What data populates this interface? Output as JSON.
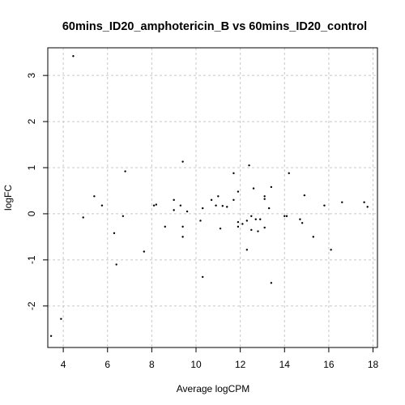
{
  "chart_data": {
    "type": "scatter",
    "title": "60mins_ID20_amphotericin_B vs 60mins_ID20_control",
    "xlabel": "Average logCPM",
    "ylabel": "logFC",
    "xlim": [
      3.3,
      18.2
    ],
    "ylim": [
      -2.9,
      3.6
    ],
    "xticks": [
      4,
      6,
      8,
      10,
      12,
      14,
      16,
      18
    ],
    "yticks": [
      -2,
      -1,
      0,
      1,
      2,
      3
    ],
    "xtick_labels": [
      "4",
      "6",
      "8",
      "10",
      "12",
      "14",
      "16",
      "18"
    ],
    "ytick_labels": [
      "-2",
      "-1",
      "0",
      "1",
      "2",
      "3"
    ],
    "grid": true,
    "points": [
      {
        "x": 3.45,
        "y": -2.65
      },
      {
        "x": 3.9,
        "y": -2.28
      },
      {
        "x": 4.45,
        "y": 3.42
      },
      {
        "x": 4.9,
        "y": -0.08
      },
      {
        "x": 5.4,
        "y": 0.38
      },
      {
        "x": 5.75,
        "y": 0.18
      },
      {
        "x": 6.3,
        "y": -0.42
      },
      {
        "x": 6.4,
        "y": -1.1
      },
      {
        "x": 6.7,
        "y": -0.05
      },
      {
        "x": 6.8,
        "y": 0.92
      },
      {
        "x": 7.65,
        "y": -0.82
      },
      {
        "x": 8.1,
        "y": 0.18
      },
      {
        "x": 8.2,
        "y": 0.2
      },
      {
        "x": 8.6,
        "y": -0.28
      },
      {
        "x": 9.0,
        "y": 0.3
      },
      {
        "x": 9.0,
        "y": 0.08
      },
      {
        "x": 9.3,
        "y": 0.18
      },
      {
        "x": 9.4,
        "y": 1.13
      },
      {
        "x": 9.4,
        "y": -0.28
      },
      {
        "x": 9.4,
        "y": -0.5
      },
      {
        "x": 9.6,
        "y": 0.05
      },
      {
        "x": 10.2,
        "y": -0.15
      },
      {
        "x": 10.3,
        "y": 0.12
      },
      {
        "x": 10.3,
        "y": -1.37
      },
      {
        "x": 10.7,
        "y": 0.3
      },
      {
        "x": 10.9,
        "y": 0.18
      },
      {
        "x": 11.0,
        "y": 0.38
      },
      {
        "x": 11.1,
        "y": -0.32
      },
      {
        "x": 11.2,
        "y": 0.17
      },
      {
        "x": 11.4,
        "y": 0.15
      },
      {
        "x": 11.7,
        "y": 0.88
      },
      {
        "x": 11.7,
        "y": 0.3
      },
      {
        "x": 11.9,
        "y": 0.48
      },
      {
        "x": 11.9,
        "y": -0.28
      },
      {
        "x": 11.9,
        "y": -0.18
      },
      {
        "x": 12.1,
        "y": -0.22
      },
      {
        "x": 12.3,
        "y": -0.15
      },
      {
        "x": 12.3,
        "y": -0.78
      },
      {
        "x": 12.4,
        "y": 1.05
      },
      {
        "x": 12.5,
        "y": -0.05
      },
      {
        "x": 12.5,
        "y": -0.35
      },
      {
        "x": 12.6,
        "y": 0.55
      },
      {
        "x": 12.7,
        "y": -0.12
      },
      {
        "x": 12.8,
        "y": -0.38
      },
      {
        "x": 12.9,
        "y": -0.12
      },
      {
        "x": 13.1,
        "y": 0.38
      },
      {
        "x": 13.1,
        "y": 0.32
      },
      {
        "x": 13.1,
        "y": -0.3
      },
      {
        "x": 13.3,
        "y": 0.12
      },
      {
        "x": 13.4,
        "y": 0.58
      },
      {
        "x": 13.4,
        "y": -1.5
      },
      {
        "x": 14.0,
        "y": -0.05
      },
      {
        "x": 14.1,
        "y": -0.05
      },
      {
        "x": 14.2,
        "y": 0.88
      },
      {
        "x": 14.7,
        "y": -0.12
      },
      {
        "x": 14.8,
        "y": -0.2
      },
      {
        "x": 14.9,
        "y": 0.4
      },
      {
        "x": 15.3,
        "y": -0.5
      },
      {
        "x": 15.8,
        "y": 0.18
      },
      {
        "x": 16.1,
        "y": -0.78
      },
      {
        "x": 16.6,
        "y": 0.25
      },
      {
        "x": 17.6,
        "y": 0.25
      },
      {
        "x": 17.75,
        "y": 0.15
      }
    ]
  }
}
